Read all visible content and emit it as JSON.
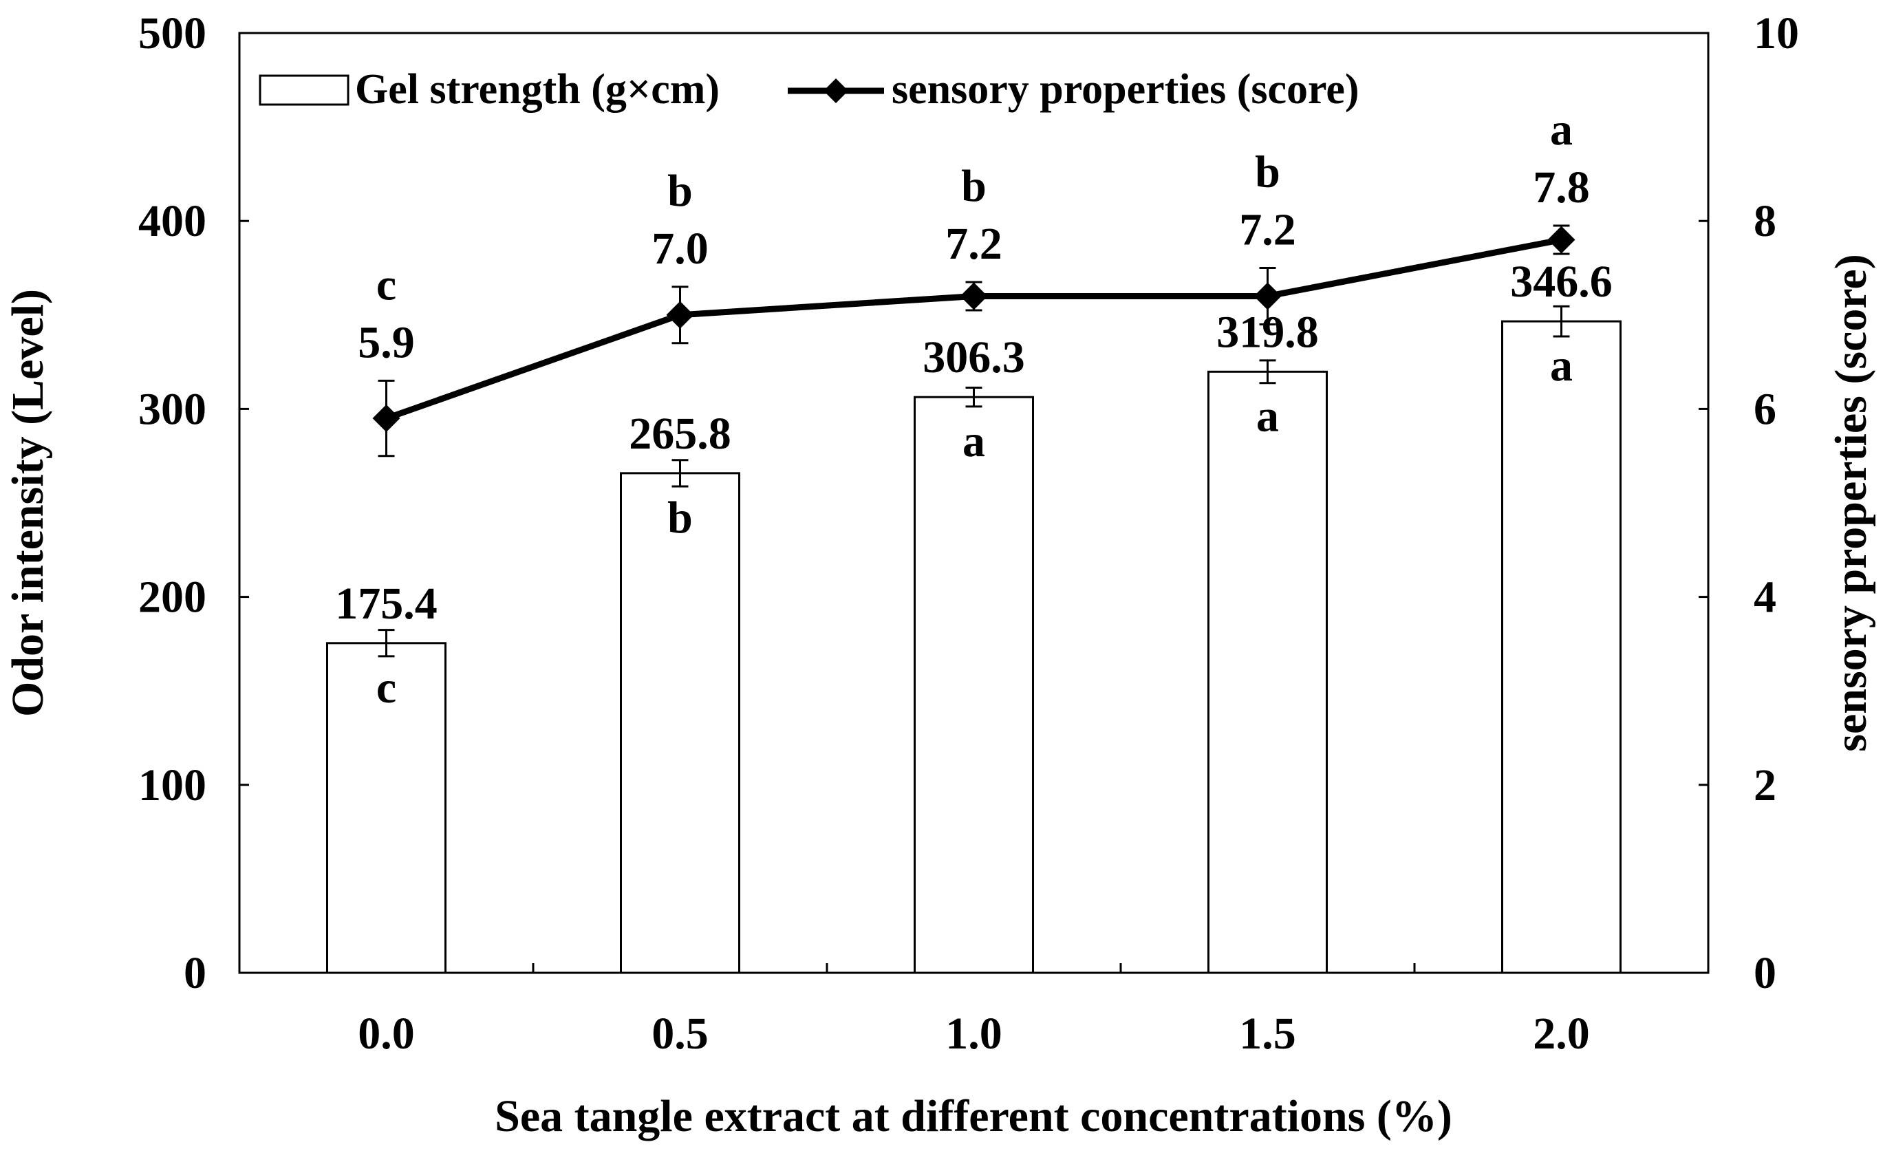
{
  "chart_data": {
    "type": "bar",
    "categories": [
      "0.0",
      "0.5",
      "1.0",
      "1.5",
      "2.0"
    ],
    "xlabel": "Sea tangle extract at different concentrations (%)",
    "ylabel": "Odor intensity (Level)",
    "y2label": "sensory properties (score)",
    "ylim": [
      0,
      500
    ],
    "yticks": [
      "0",
      "100",
      "200",
      "300",
      "400",
      "500"
    ],
    "y2lim": [
      0,
      10
    ],
    "y2ticks": [
      "0",
      "2",
      "4",
      "6",
      "8",
      "10"
    ],
    "legend_position": "top-left",
    "grid": false,
    "series": [
      {
        "name": "Gel strength (g×cm)",
        "kind": "bar",
        "axis": "left",
        "values": [
          175.4,
          265.8,
          306.3,
          319.8,
          346.6
        ],
        "value_labels": [
          "175.4",
          "265.8",
          "306.3",
          "319.8",
          "346.6"
        ],
        "errors": [
          7,
          7,
          5,
          6,
          8
        ],
        "letters": [
          "c",
          "b",
          "a",
          "a",
          "a"
        ],
        "fill": "#ffffff",
        "stroke": "#000000"
      },
      {
        "name": "sensory properties (score)",
        "kind": "line",
        "axis": "right",
        "values": [
          5.9,
          7.0,
          7.2,
          7.2,
          7.8
        ],
        "value_labels": [
          "5.9",
          "7.0",
          "7.2",
          "7.2",
          "7.8"
        ],
        "errors": [
          0.4,
          0.3,
          0.15,
          0.3,
          0.15
        ],
        "letters": [
          "c",
          "b",
          "b",
          "b",
          "a"
        ],
        "marker": "diamond",
        "color": "#000000"
      }
    ]
  }
}
